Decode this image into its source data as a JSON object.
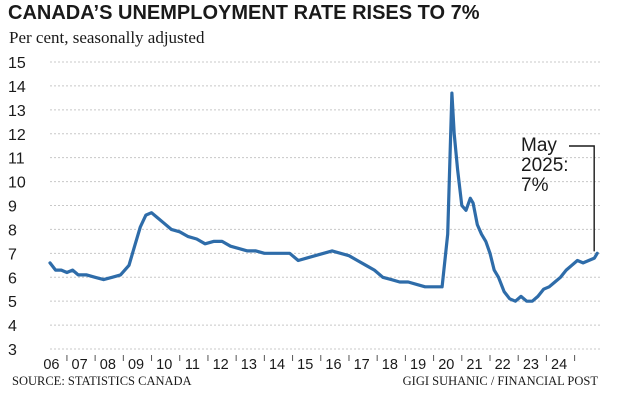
{
  "title": "CANADA’S UNEMPLOYMENT RATE RISES TO 7%",
  "subtitle": "Per cent, seasonally adjusted",
  "source": "SOURCE: STATISTICS CANADA",
  "credit": "GIGI SUHANIC / FINANCIAL POST",
  "annotation": {
    "line1": "May",
    "line2": "2025:",
    "line3": "7%"
  },
  "colors": {
    "line": "#2e6ca9",
    "grid": "#c8c8c8",
    "text": "#1a1a1a"
  },
  "chart_data": {
    "type": "line",
    "title": "CANADA’S UNEMPLOYMENT RATE RISES TO 7%",
    "subtitle": "Per cent, seasonally adjusted",
    "xlabel": "",
    "ylabel": "",
    "ylim": [
      3,
      15
    ],
    "yticks": [
      3,
      4,
      5,
      6,
      7,
      8,
      9,
      10,
      11,
      12,
      13,
      14,
      15
    ],
    "xlim": [
      2006.0,
      2025.5
    ],
    "xtick_labels": [
      "06",
      "07",
      "08",
      "09",
      "10",
      "11",
      "12",
      "13",
      "14",
      "15",
      "16",
      "17",
      "18",
      "19",
      "20",
      "21",
      "22",
      "23",
      "24"
    ],
    "grid": "horizontal",
    "series": [
      {
        "values_x_year": [
          2006.0,
          2006.2,
          2006.4,
          2006.6,
          2006.8,
          2007.0,
          2007.3,
          2007.6,
          2007.9,
          2008.2,
          2008.5,
          2008.8,
          2009.0,
          2009.2,
          2009.4,
          2009.6,
          2009.8,
          2010.0,
          2010.3,
          2010.6,
          2010.9,
          2011.2,
          2011.5,
          2011.8,
          2012.1,
          2012.4,
          2012.7,
          2013.0,
          2013.3,
          2013.6,
          2013.9,
          2014.2,
          2014.5,
          2014.8,
          2015.1,
          2015.4,
          2015.7,
          2016.0,
          2016.3,
          2016.6,
          2016.9,
          2017.2,
          2017.5,
          2017.8,
          2018.1,
          2018.4,
          2018.7,
          2019.0,
          2019.3,
          2019.6,
          2019.9,
          2020.1,
          2020.25,
          2020.33,
          2020.45,
          2020.6,
          2020.75,
          2020.9,
          2021.0,
          2021.15,
          2021.3,
          2021.45,
          2021.6,
          2021.75,
          2021.9,
          2022.1,
          2022.3,
          2022.5,
          2022.7,
          2022.9,
          2023.1,
          2023.3,
          2023.5,
          2023.7,
          2023.9,
          2024.1,
          2024.3,
          2024.5,
          2024.7,
          2024.9,
          2025.1,
          2025.3,
          2025.4
        ],
        "values": [
          6.6,
          6.3,
          6.3,
          6.2,
          6.3,
          6.1,
          6.1,
          6.0,
          5.9,
          6.0,
          6.1,
          6.5,
          7.3,
          8.1,
          8.6,
          8.7,
          8.5,
          8.3,
          8.0,
          7.9,
          7.7,
          7.6,
          7.4,
          7.5,
          7.5,
          7.3,
          7.2,
          7.1,
          7.1,
          7.0,
          7.0,
          7.0,
          7.0,
          6.7,
          6.8,
          6.9,
          7.0,
          7.1,
          7.0,
          6.9,
          6.7,
          6.5,
          6.3,
          6.0,
          5.9,
          5.8,
          5.8,
          5.7,
          5.6,
          5.6,
          5.6,
          7.8,
          13.7,
          12.0,
          10.5,
          9.0,
          8.8,
          9.3,
          9.1,
          8.2,
          7.8,
          7.5,
          7.0,
          6.3,
          6.0,
          5.4,
          5.1,
          5.0,
          5.2,
          5.0,
          5.0,
          5.2,
          5.5,
          5.6,
          5.8,
          6.0,
          6.3,
          6.5,
          6.7,
          6.6,
          6.7,
          6.8,
          7.0
        ]
      }
    ]
  }
}
